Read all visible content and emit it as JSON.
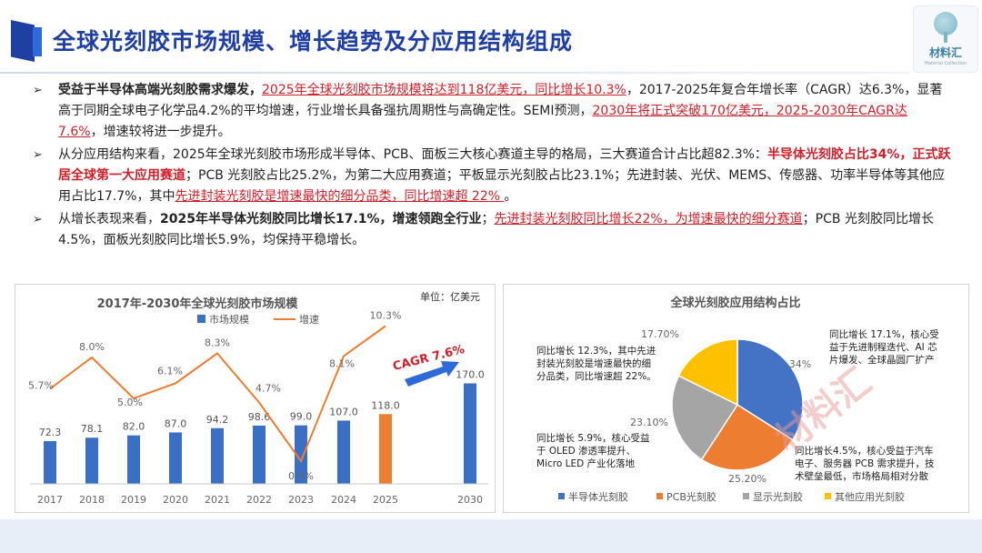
{
  "slide_title": "全球光刻胶市场规模、增长趋势及分应用结构组成",
  "logo": {
    "name": "材料汇",
    "sub": "Material Collection"
  },
  "bullets": [
    {
      "runs": [
        {
          "t": "受益于半导体高端光刻胶需求爆发，",
          "s": "b"
        },
        {
          "t": "2025年全球光刻胶市场规模将达到118亿美元，同比增长10.3%",
          "s": "ru"
        },
        {
          "t": "，2017-2025年复合年增长率（CAGR）达6.3%，显著高于同期全球电子化学品4.2%的平均增速，行业增长具备强抗周期性与高确定性。SEMI预测，",
          "s": "n"
        },
        {
          "t": "2030年将正式突破170亿美元，2025-2030年CAGR达7.6%",
          "s": "ru"
        },
        {
          "t": "，增速较将进一步提升。",
          "s": "n"
        }
      ]
    },
    {
      "runs": [
        {
          "t": "从分应用结构来看，2025年全球光刻胶市场形成半导体、PCB、面板三大核心赛道主导的格局，三大赛道合计占比超82.3%：",
          "s": "n"
        },
        {
          "t": "半导体光刻胶占比34%，正式跃居全球第一大应用赛道",
          "s": "rb"
        },
        {
          "t": "；PCB 光刻胶占比25.2%，为第二大应用赛道；平板显示光刻胶占比23.1%；先进封装、光伏、MEMS、传感器、功率半导体等其他应用占比17.7%，其中",
          "s": "n"
        },
        {
          "t": "先进封装光刻胶是增速最快的细分品类，同比增速超 22% ",
          "s": "ru"
        },
        {
          "t": "。",
          "s": "n"
        }
      ]
    },
    {
      "runs": [
        {
          "t": "从增长表现来看，",
          "s": "n"
        },
        {
          "t": "2025年半导体光刻胶同比增长17.1%，增速领跑全行业",
          "s": "b"
        },
        {
          "t": "；",
          "s": "n"
        },
        {
          "t": "先进封装光刻胶同比增长22%，为增速最快的细分赛道",
          "s": "ru"
        },
        {
          "t": "；PCB 光刻胶同比增长4.5%，面板光刻胶同比增长5.9%，均保持平稳增长。",
          "s": "n"
        }
      ]
    }
  ],
  "chart_data": [
    {
      "type": "bar+line",
      "title": "2017年-2030年全球光刻胶市场规模",
      "unit_label": "单位：亿美元",
      "categories": [
        "2017",
        "2018",
        "2019",
        "2020",
        "2021",
        "2022",
        "2023",
        "2024",
        "2025",
        "2030"
      ],
      "series": [
        {
          "name": "市场规模",
          "type": "bar",
          "values": [
            72.3,
            78.1,
            82.0,
            87.0,
            94.2,
            98.6,
            99.0,
            107.0,
            118.0,
            170.0
          ],
          "labels": [
            "72.3",
            "78.1",
            "82.0",
            "87.0",
            "94.2",
            "98.6",
            "99.0",
            "107.0",
            "118.0",
            "170.0"
          ]
        },
        {
          "name": "增速",
          "type": "line",
          "values": [
            5.7,
            8.0,
            5.0,
            6.1,
            8.3,
            4.7,
            0.4,
            8.1,
            10.3,
            null
          ],
          "labels": [
            "5.7%",
            "8.0%",
            "5.0%",
            "6.1%",
            "8.3%",
            "4.7%",
            "0.4%",
            "8.1%",
            "10.3%",
            ""
          ]
        }
      ],
      "highlight_category": "2025",
      "annotation": "CAGR 7.6%",
      "colors": {
        "bar": "#3a6fc4",
        "bar_highlight": "#ed7d31",
        "line": "#ed7d31",
        "arrow": "#2e6ad8",
        "annotation": "#d0202a"
      },
      "grid": false,
      "legend": "top"
    },
    {
      "type": "pie",
      "title": "全球光刻胶应用结构占比",
      "series": [
        {
          "name": "半导体光刻胶",
          "value": 34,
          "label": "34%",
          "color": "#4472c4",
          "note": "同比增长 17.1%，核心受益于先进制程迭代、AI 芯片爆发、全球晶圆厂扩产"
        },
        {
          "name": "PCB光刻胶",
          "value": 25.2,
          "label": "25.20%",
          "color": "#ed7d31",
          "note": "同比增长 4.5%，核心受益于汽车电子、服务器 PCB 需求提升，技术壁垒最低，市场格局相对分散"
        },
        {
          "name": "显示光刻胶",
          "value": 23.1,
          "label": "23.10%",
          "color": "#a5a5a5",
          "note": "同比增长 5.9%，核心受益于 OLED 渗透率提升、Micro LED 产业化落地"
        },
        {
          "name": "其他应用光刻胶",
          "value": 17.7,
          "label": "17.70%",
          "color": "#ffc000",
          "note": "同比增长 12.3%，其中先进封装光刻胶是增速最快的细分品类，同比增速超 22%。"
        }
      ],
      "legend": "bottom",
      "watermark": "材料汇"
    }
  ]
}
